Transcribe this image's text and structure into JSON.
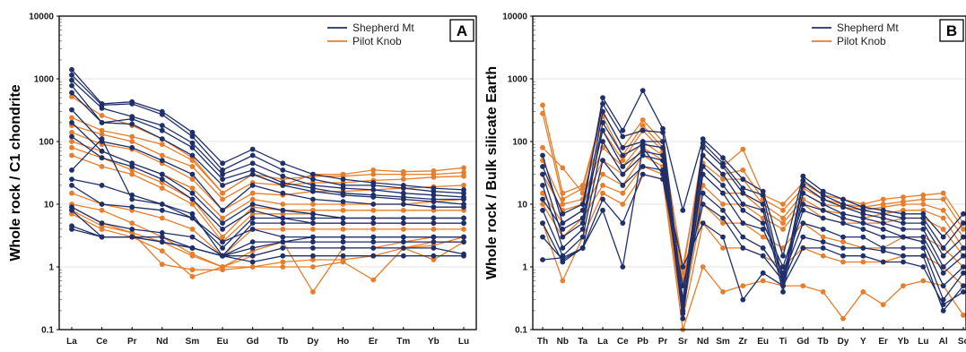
{
  "colors": {
    "shepherd": "#1f2f6b",
    "pilot": "#e87d2b",
    "grid": "#e3e3e3"
  },
  "chart_data": [
    {
      "type": "line",
      "panel_label": "A",
      "ylabel": "Whole rock / C1 chondrite",
      "yscale": "log",
      "ylim": [
        0.1,
        10000
      ],
      "yticks": [
        "0.1",
        "1",
        "10",
        "100",
        "1000",
        "10000"
      ],
      "grid": true,
      "legend": "top-right",
      "legend_entries": [
        "Shepherd Mt",
        "Pilot Knob"
      ],
      "categories": [
        "La",
        "Ce",
        "Pr",
        "Nd",
        "Sm",
        "Eu",
        "Gd",
        "Tb",
        "Dy",
        "Ho",
        "Er",
        "Tm",
        "Yb",
        "Lu"
      ],
      "series": [
        {
          "group": "Shepherd Mt",
          "values": [
            1400,
            400,
            430,
            300,
            140,
            45,
            75,
            45,
            30,
            25,
            22,
            20,
            18,
            17
          ]
        },
        {
          "group": "Shepherd Mt",
          "values": [
            1150,
            380,
            400,
            270,
            120,
            35,
            60,
            35,
            25,
            20,
            20,
            18,
            16,
            15
          ]
        },
        {
          "group": "Shepherd Mt",
          "values": [
            950,
            340,
            250,
            180,
            95,
            30,
            45,
            28,
            20,
            18,
            17,
            15,
            14,
            13
          ]
        },
        {
          "group": "Shepherd Mt",
          "values": [
            780,
            200,
            230,
            150,
            80,
            25,
            35,
            22,
            18,
            15,
            14,
            13,
            12,
            12
          ]
        },
        {
          "group": "Shepherd Mt",
          "values": [
            600,
            200,
            190,
            110,
            60,
            20,
            30,
            20,
            16,
            14,
            13,
            12,
            11,
            10
          ]
        },
        {
          "group": "Shepherd Mt",
          "values": [
            320,
            100,
            80,
            50,
            30,
            8,
            20,
            15,
            12,
            11,
            10,
            10,
            9,
            9
          ]
        },
        {
          "group": "Shepherd Mt",
          "values": [
            200,
            70,
            45,
            30,
            15,
            5,
            10,
            8,
            7,
            6,
            6,
            6,
            6,
            6
          ]
        },
        {
          "group": "Shepherd Mt",
          "values": [
            120,
            55,
            40,
            25,
            12,
            4,
            8,
            6,
            5,
            5,
            5,
            5,
            5,
            5
          ]
        },
        {
          "group": "Shepherd Mt",
          "values": [
            35,
            110,
            12,
            10,
            6,
            2.5,
            4,
            3,
            3,
            3,
            3,
            3,
            3,
            3
          ]
        },
        {
          "group": "Shepherd Mt",
          "values": [
            25,
            20,
            14,
            10,
            7,
            1.5,
            5,
            5,
            5,
            5,
            5,
            5,
            5,
            5
          ]
        },
        {
          "group": "Shepherd Mt",
          "values": [
            20,
            10,
            9,
            8,
            6,
            2,
            6,
            6,
            6,
            6,
            6,
            6,
            6,
            6
          ]
        },
        {
          "group": "Shepherd Mt",
          "values": [
            9,
            5,
            4,
            3.5,
            3,
            1.5,
            2.5,
            2.5,
            2.5,
            2.5,
            2.5,
            2.5,
            2.5,
            2.5
          ]
        },
        {
          "group": "Shepherd Mt",
          "values": [
            8,
            3,
            3,
            3,
            2,
            1.5,
            2,
            2.5,
            3,
            3,
            3,
            3,
            3,
            3
          ]
        },
        {
          "group": "Shepherd Mt",
          "values": [
            4.5,
            3,
            3,
            2.5,
            2,
            1.5,
            1.5,
            2,
            2,
            2,
            2,
            2,
            2,
            1.6
          ]
        },
        {
          "group": "Shepherd Mt",
          "values": [
            4,
            3,
            3,
            2.5,
            2,
            1.5,
            1.2,
            1.5,
            1.5,
            1.5,
            1.5,
            1.5,
            1.5,
            1.5
          ]
        },
        {
          "group": "Pilot Knob",
          "values": [
            520,
            260,
            180,
            110,
            55,
            15,
            30,
            20,
            30,
            30,
            35,
            33,
            34,
            38
          ]
        },
        {
          "group": "Pilot Knob",
          "values": [
            240,
            150,
            120,
            90,
            50,
            15,
            30,
            25,
            28,
            28,
            30,
            30,
            30,
            32
          ]
        },
        {
          "group": "Pilot Knob",
          "values": [
            180,
            130,
            100,
            60,
            40,
            12,
            22,
            20,
            22,
            22,
            24,
            25,
            27,
            28
          ]
        },
        {
          "group": "Pilot Knob",
          "values": [
            140,
            90,
            75,
            45,
            25,
            8,
            15,
            14,
            16,
            16,
            17,
            18,
            19,
            20
          ]
        },
        {
          "group": "Pilot Knob",
          "values": [
            100,
            70,
            45,
            30,
            18,
            6,
            12,
            10,
            10,
            10,
            10,
            10,
            11,
            12
          ]
        },
        {
          "group": "Pilot Knob",
          "values": [
            80,
            55,
            35,
            22,
            12,
            3,
            9,
            8,
            8,
            8,
            8,
            8,
            8,
            8
          ]
        },
        {
          "group": "Pilot Knob",
          "values": [
            60,
            40,
            30,
            18,
            10,
            2.5,
            7,
            7,
            7,
            6,
            6,
            6,
            6,
            6
          ]
        },
        {
          "group": "Pilot Knob",
          "values": [
            15,
            10,
            8,
            6,
            4,
            1.5,
            4,
            4,
            4,
            4,
            4,
            4,
            4,
            4
          ]
        },
        {
          "group": "Pilot Knob",
          "values": [
            10,
            8,
            5,
            3,
            1.6,
            1,
            1.5,
            2,
            2,
            2,
            2,
            2,
            2.5,
            2.5
          ]
        },
        {
          "group": "Pilot Knob",
          "values": [
            8,
            4.5,
            3.5,
            1.1,
            0.9,
            0.9,
            1,
            1.2,
            1.3,
            1.3,
            1.5,
            2,
            2.2,
            3
          ]
        },
        {
          "group": "Pilot Knob",
          "values": [
            7,
            4,
            3,
            1.8,
            0.7,
            1,
            1,
            1,
            1,
            1.2,
            0.62,
            2,
            1.3,
            2.5
          ]
        },
        {
          "group": "Pilot Knob",
          "values": [
            9,
            5,
            3.5,
            2.5,
            1.5,
            1,
            1.8,
            2.5,
            0.4,
            2,
            2,
            2.5,
            3,
            3
          ]
        }
      ]
    },
    {
      "type": "line",
      "panel_label": "B",
      "ylabel": "Whole rock / Bulk silicate Earth",
      "yscale": "log",
      "ylim": [
        0.1,
        10000
      ],
      "yticks": [
        "0.1",
        "1",
        "10",
        "100",
        "1000",
        "10000"
      ],
      "grid": true,
      "legend": "top-right",
      "legend_entries": [
        "Shepherd Mt",
        "Pilot Knob"
      ],
      "categories": [
        "Th",
        "Nb",
        "Ta",
        "La",
        "Ce",
        "Pb",
        "Pr",
        "Sr",
        "Nd",
        "Sm",
        "Zr",
        "Eu",
        "Ti",
        "Gd",
        "Tb",
        "Dy",
        "Y",
        "Er",
        "Yb",
        "Lu",
        "Al",
        "Sc"
      ],
      "series": [
        {
          "group": "Shepherd Mt",
          "values": [
            60,
            5,
            8,
            500,
            150,
            650,
            160,
            8,
            110,
            55,
            25,
            16,
            1.5,
            28,
            16,
            12,
            9,
            8,
            7,
            7,
            3,
            7
          ]
        },
        {
          "group": "Shepherd Mt",
          "values": [
            40,
            7,
            10,
            400,
            120,
            150,
            140,
            0.3,
            95,
            45,
            18,
            14,
            0.6,
            24,
            14,
            10,
            8,
            7,
            6,
            6,
            2,
            5
          ]
        },
        {
          "group": "Shepherd Mt",
          "values": [
            30,
            3,
            5,
            300,
            80,
            100,
            100,
            0.2,
            80,
            40,
            15,
            10,
            0.5,
            20,
            12,
            9,
            7,
            6,
            5,
            5,
            1.5,
            3
          ]
        },
        {
          "group": "Shepherd Mt",
          "values": [
            20,
            2,
            4,
            200,
            60,
            90,
            80,
            0.18,
            60,
            30,
            10,
            8,
            0.4,
            15,
            10,
            7,
            6,
            5,
            4,
            4,
            1,
            2
          ]
        },
        {
          "group": "Shepherd Mt",
          "values": [
            12,
            4,
            6,
            150,
            40,
            70,
            60,
            0.15,
            40,
            20,
            8,
            5,
            1,
            10,
            8,
            6,
            5,
            4,
            3,
            3,
            0.8,
            1.5
          ]
        },
        {
          "group": "Shepherd Mt",
          "values": [
            8,
            1.5,
            3,
            100,
            30,
            60,
            50,
            0.2,
            30,
            15,
            5,
            4,
            0.8,
            8,
            6,
            5,
            4,
            3,
            3,
            2.5,
            0.5,
            1
          ]
        },
        {
          "group": "Shepherd Mt",
          "values": [
            5,
            1.2,
            2,
            50,
            20,
            40,
            35,
            0.25,
            15,
            8,
            3,
            2,
            0.7,
            5,
            4,
            3,
            3,
            2,
            2,
            2,
            0.3,
            0.8
          ]
        },
        {
          "group": "Shepherd Mt",
          "values": [
            3,
            1.3,
            2,
            12,
            5,
            30,
            25,
            0.5,
            10,
            6,
            2,
            1.5,
            0.6,
            3,
            2.5,
            2,
            2,
            1.8,
            1.5,
            1.5,
            0.2,
            0.5
          ]
        },
        {
          "group": "Shepherd Mt",
          "values": [
            1.3,
            1.4,
            2,
            8,
            1,
            80,
            30,
            1,
            5,
            3,
            0.3,
            0.8,
            0.5,
            2,
            2,
            1.5,
            1.5,
            1.2,
            1.2,
            1,
            0.25,
            0.4
          ]
        },
        {
          "group": "Pilot Knob",
          "values": [
            380,
            15,
            20,
            300,
            80,
            220,
            100,
            0.8,
            80,
            40,
            75,
            14,
            10,
            22,
            14,
            12,
            10,
            12,
            13,
            14,
            15,
            5
          ]
        },
        {
          "group": "Pilot Knob",
          "values": [
            280,
            12,
            18,
            250,
            60,
            180,
            80,
            1,
            60,
            30,
            35,
            12,
            8,
            18,
            12,
            10,
            9,
            10,
            11,
            12,
            12,
            4
          ]
        },
        {
          "group": "Pilot Knob",
          "values": [
            80,
            38,
            15,
            150,
            50,
            150,
            70,
            0.5,
            45,
            25,
            25,
            10,
            6,
            15,
            10,
            9,
            8,
            9,
            10,
            10,
            8,
            3
          ]
        },
        {
          "group": "Pilot Knob",
          "values": [
            50,
            10,
            12,
            80,
            40,
            100,
            60,
            0.6,
            30,
            15,
            15,
            8,
            5,
            12,
            8,
            7,
            6,
            7,
            8,
            8,
            6,
            2
          ]
        },
        {
          "group": "Pilot Knob",
          "values": [
            30,
            8,
            10,
            50,
            30,
            80,
            50,
            0.3,
            20,
            10,
            10,
            6,
            4,
            10,
            6,
            5,
            5,
            5,
            6,
            6,
            4,
            1.5
          ]
        },
        {
          "group": "Pilot Knob",
          "values": [
            15,
            5,
            8,
            30,
            20,
            60,
            40,
            0.2,
            10,
            5,
            5,
            3,
            2,
            5,
            3,
            2.5,
            2,
            2,
            3,
            3,
            2,
            1
          ]
        },
        {
          "group": "Pilot Knob",
          "values": [
            10,
            3,
            6,
            20,
            15,
            40,
            30,
            0.15,
            5,
            2,
            2,
            1.5,
            1,
            2,
            1.5,
            1.2,
            1.2,
            1.2,
            1.5,
            1.5,
            1,
            0.5
          ]
        },
        {
          "group": "Pilot Knob",
          "values": [
            5,
            0.6,
            3,
            15,
            10,
            30,
            25,
            0.1,
            1,
            0.4,
            0.5,
            0.6,
            0.5,
            0.5,
            0.4,
            0.15,
            0.4,
            0.25,
            0.5,
            0.6,
            0.5,
            0.17
          ]
        }
      ]
    }
  ]
}
